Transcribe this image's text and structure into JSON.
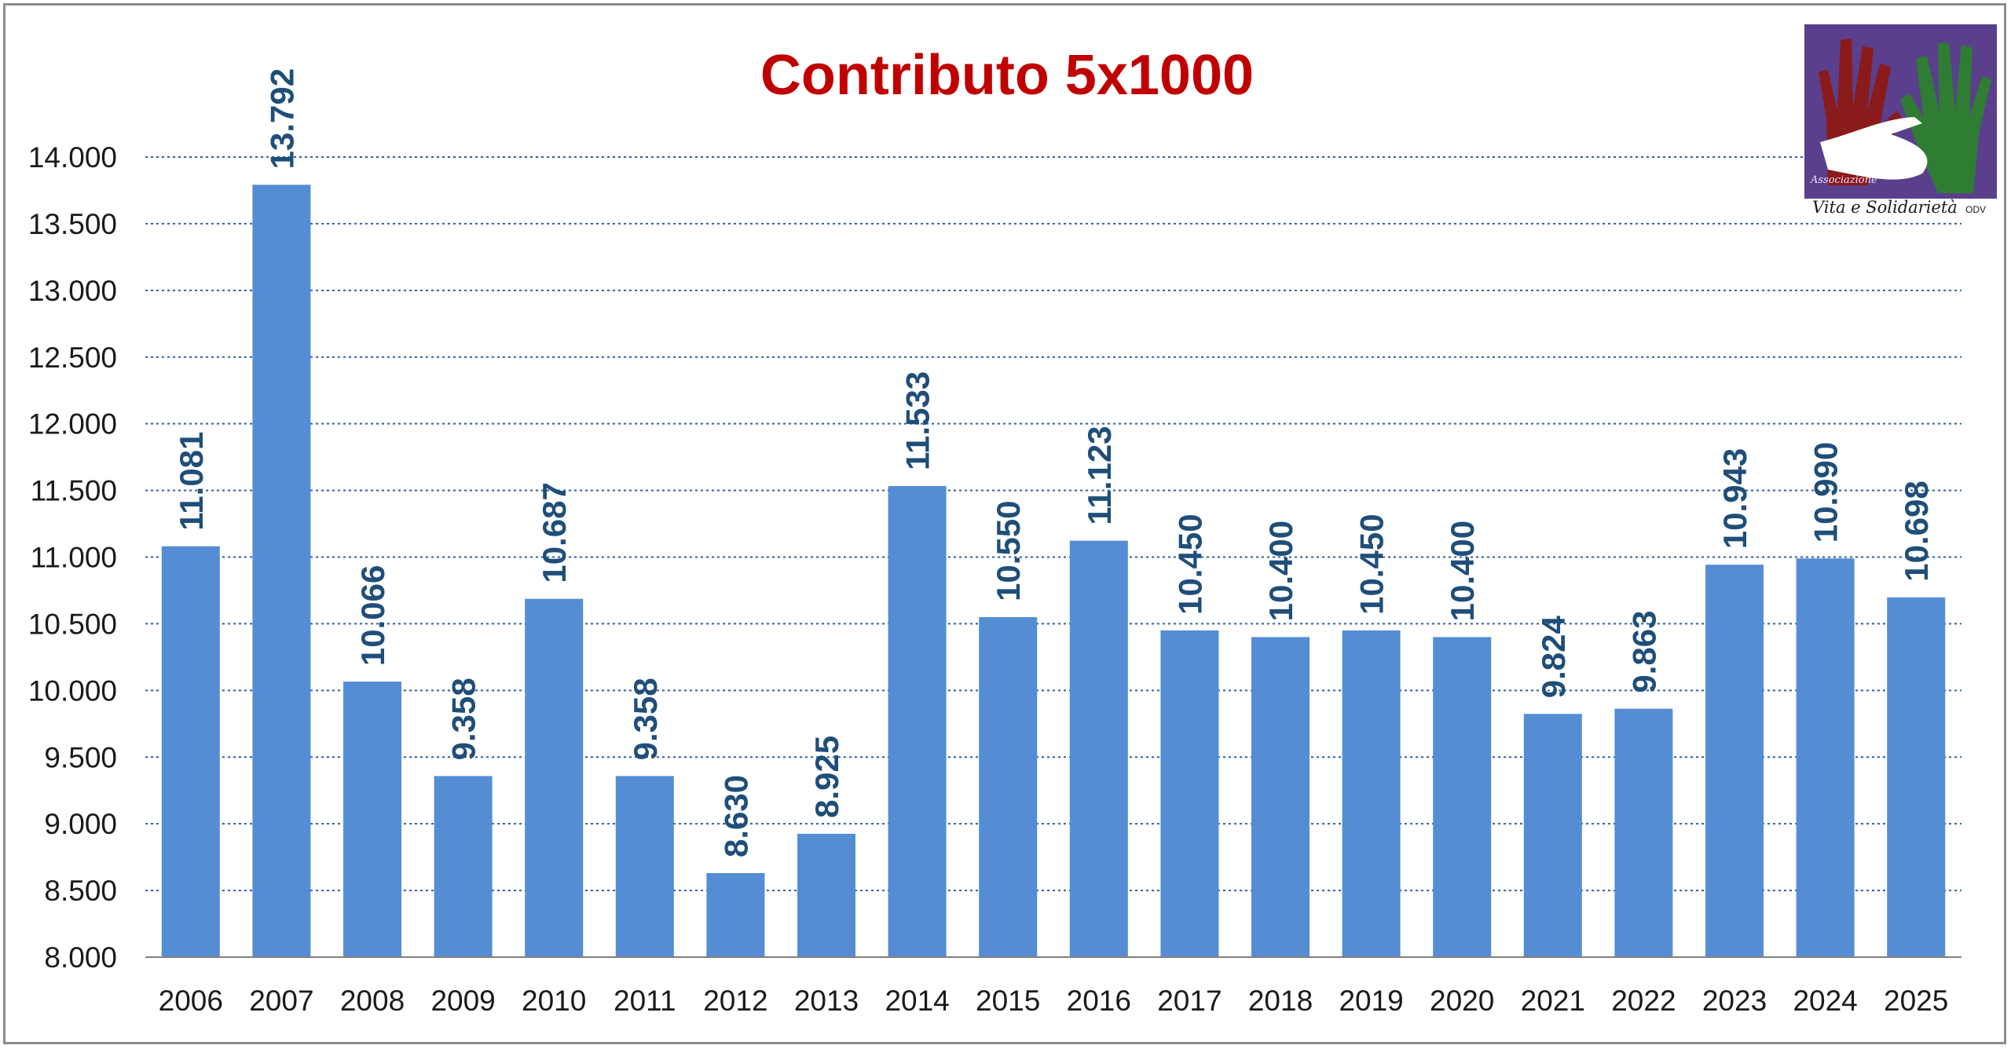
{
  "chart_data": {
    "type": "bar",
    "title": "Contributo 5x1000",
    "categories": [
      "2006",
      "2007",
      "2008",
      "2009",
      "2010",
      "2011",
      "2012",
      "2013",
      "2014",
      "2015",
      "2016",
      "2017",
      "2018",
      "2019",
      "2020",
      "2021",
      "2022",
      "2023",
      "2024",
      "2025"
    ],
    "values": [
      11081,
      13792,
      10066,
      9358,
      10687,
      9358,
      8630,
      8925,
      11533,
      10550,
      11123,
      10450,
      10400,
      10450,
      10400,
      9824,
      9863,
      10943,
      10990,
      10698
    ],
    "data_labels": [
      "11.081",
      "13.792",
      "10.066",
      "9.358",
      "10.687",
      "9.358",
      "8.630",
      "8.925",
      "11.533",
      "10.550",
      "11.123",
      "10.450",
      "10.400",
      "10.450",
      "10.400",
      "9.824",
      "9.863",
      "10.943",
      "10.990",
      "10.698"
    ],
    "ylim": [
      8000,
      14000
    ],
    "yticks": [
      8000,
      8500,
      9000,
      9500,
      10000,
      10500,
      11000,
      11500,
      12000,
      12500,
      13000,
      13500,
      14000
    ],
    "ytick_labels": [
      "8.000",
      "8.500",
      "9.000",
      "9.500",
      "10.000",
      "10.500",
      "11.000",
      "11.500",
      "12.000",
      "12.500",
      "13.000",
      "13.500",
      "14.000"
    ],
    "grid": true,
    "bar_color": "#548dd4",
    "label_color": "#1f4e79",
    "title_color": "#c00000",
    "grid_color": "#2e5f9e"
  },
  "logo": {
    "line1": "Associazione",
    "line2": "Vita e Solidarietà",
    "suffix": "ODV",
    "bg_color": "#5a3f8c",
    "hand_left_color": "#8b1a1a",
    "hand_right_color": "#2e7d32"
  }
}
